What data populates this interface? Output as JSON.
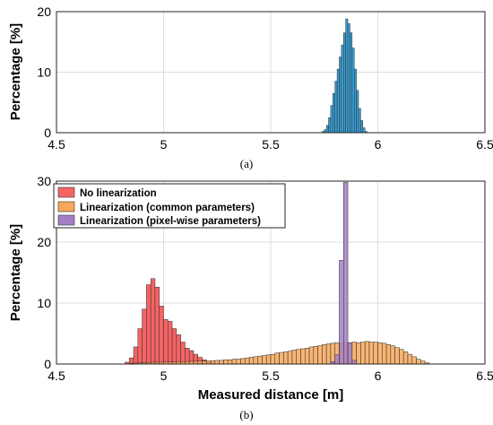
{
  "chart_data": [
    {
      "type": "bar",
      "caption": "(a)",
      "ylabel": "Percentage [%]",
      "xlabel": "",
      "xlim": [
        4.5,
        6.5
      ],
      "ylim": [
        0,
        20
      ],
      "xticks": [
        "4.5",
        "5",
        "5.5",
        "6",
        "6.5"
      ],
      "yticks": [
        "0",
        "10",
        "20"
      ],
      "grid": true,
      "bin_width": 0.01,
      "series": [
        {
          "color": "#3a9fd4",
          "bins": [
            {
              "x": 5.74,
              "y": 0.2
            },
            {
              "x": 5.75,
              "y": 0.5
            },
            {
              "x": 5.76,
              "y": 1.2
            },
            {
              "x": 5.77,
              "y": 2.5
            },
            {
              "x": 5.78,
              "y": 4.5
            },
            {
              "x": 5.79,
              "y": 6.5
            },
            {
              "x": 5.8,
              "y": 8.5
            },
            {
              "x": 5.81,
              "y": 10.5
            },
            {
              "x": 5.82,
              "y": 12.5
            },
            {
              "x": 5.83,
              "y": 14.5
            },
            {
              "x": 5.84,
              "y": 16.5
            },
            {
              "x": 5.85,
              "y": 18.8
            },
            {
              "x": 5.86,
              "y": 18.0
            },
            {
              "x": 5.87,
              "y": 16.5
            },
            {
              "x": 5.88,
              "y": 14.0
            },
            {
              "x": 5.89,
              "y": 10.5
            },
            {
              "x": 5.9,
              "y": 7.0
            },
            {
              "x": 5.91,
              "y": 4.0
            },
            {
              "x": 5.92,
              "y": 2.0
            },
            {
              "x": 5.93,
              "y": 0.8
            },
            {
              "x": 5.94,
              "y": 0.2
            }
          ]
        }
      ]
    },
    {
      "type": "bar",
      "caption": "(b)",
      "ylabel": "Percentage [%]",
      "xlabel": "Measured distance [m]",
      "xlim": [
        4.5,
        6.5
      ],
      "ylim": [
        0,
        30
      ],
      "xticks": [
        "4.5",
        "5",
        "5.5",
        "6",
        "6.5"
      ],
      "yticks": [
        "0",
        "10",
        "20",
        "30"
      ],
      "grid": true,
      "legend_position": "top-left",
      "bin_width": 0.02,
      "series": [
        {
          "name": "No linearization",
          "color": "#f46464",
          "bins": [
            {
              "x": 4.82,
              "y": 0.3
            },
            {
              "x": 4.84,
              "y": 1.0
            },
            {
              "x": 4.86,
              "y": 2.8
            },
            {
              "x": 4.88,
              "y": 5.8
            },
            {
              "x": 4.9,
              "y": 9.0
            },
            {
              "x": 4.92,
              "y": 13.0
            },
            {
              "x": 4.94,
              "y": 14.0
            },
            {
              "x": 4.96,
              "y": 12.6
            },
            {
              "x": 4.98,
              "y": 9.5
            },
            {
              "x": 5.0,
              "y": 7.3
            },
            {
              "x": 5.02,
              "y": 7.0
            },
            {
              "x": 5.04,
              "y": 5.8
            },
            {
              "x": 5.06,
              "y": 4.8
            },
            {
              "x": 5.08,
              "y": 3.6
            },
            {
              "x": 5.1,
              "y": 2.6
            },
            {
              "x": 5.12,
              "y": 2.2
            },
            {
              "x": 5.14,
              "y": 1.6
            },
            {
              "x": 5.16,
              "y": 1.1
            },
            {
              "x": 5.18,
              "y": 0.7
            },
            {
              "x": 5.2,
              "y": 0.4
            },
            {
              "x": 5.22,
              "y": 0.2
            }
          ]
        },
        {
          "name": "Linearization (common parameters)",
          "color": "#f6a85a",
          "bins": [
            {
              "x": 4.84,
              "y": 0.1
            },
            {
              "x": 4.86,
              "y": 0.15
            },
            {
              "x": 4.88,
              "y": 0.2
            },
            {
              "x": 4.9,
              "y": 0.2
            },
            {
              "x": 4.92,
              "y": 0.25
            },
            {
              "x": 4.94,
              "y": 0.3
            },
            {
              "x": 4.96,
              "y": 0.3
            },
            {
              "x": 4.98,
              "y": 0.3
            },
            {
              "x": 5.0,
              "y": 0.35
            },
            {
              "x": 5.02,
              "y": 0.35
            },
            {
              "x": 5.04,
              "y": 0.35
            },
            {
              "x": 5.06,
              "y": 0.4
            },
            {
              "x": 5.08,
              "y": 0.4
            },
            {
              "x": 5.1,
              "y": 0.4
            },
            {
              "x": 5.12,
              "y": 0.45
            },
            {
              "x": 5.14,
              "y": 0.45
            },
            {
              "x": 5.16,
              "y": 0.5
            },
            {
              "x": 5.18,
              "y": 0.5
            },
            {
              "x": 5.2,
              "y": 0.5
            },
            {
              "x": 5.22,
              "y": 0.55
            },
            {
              "x": 5.24,
              "y": 0.6
            },
            {
              "x": 5.26,
              "y": 0.6
            },
            {
              "x": 5.28,
              "y": 0.7
            },
            {
              "x": 5.3,
              "y": 0.7
            },
            {
              "x": 5.32,
              "y": 0.8
            },
            {
              "x": 5.34,
              "y": 0.8
            },
            {
              "x": 5.36,
              "y": 0.9
            },
            {
              "x": 5.38,
              "y": 1.0
            },
            {
              "x": 5.4,
              "y": 1.1
            },
            {
              "x": 5.42,
              "y": 1.2
            },
            {
              "x": 5.44,
              "y": 1.3
            },
            {
              "x": 5.46,
              "y": 1.4
            },
            {
              "x": 5.48,
              "y": 1.5
            },
            {
              "x": 5.5,
              "y": 1.6
            },
            {
              "x": 5.52,
              "y": 1.8
            },
            {
              "x": 5.54,
              "y": 1.9
            },
            {
              "x": 5.56,
              "y": 2.0
            },
            {
              "x": 5.58,
              "y": 2.1
            },
            {
              "x": 5.6,
              "y": 2.3
            },
            {
              "x": 5.62,
              "y": 2.4
            },
            {
              "x": 5.64,
              "y": 2.5
            },
            {
              "x": 5.66,
              "y": 2.6
            },
            {
              "x": 5.68,
              "y": 2.8
            },
            {
              "x": 5.7,
              "y": 2.9
            },
            {
              "x": 5.72,
              "y": 3.0
            },
            {
              "x": 5.74,
              "y": 3.2
            },
            {
              "x": 5.76,
              "y": 3.3
            },
            {
              "x": 5.78,
              "y": 3.4
            },
            {
              "x": 5.8,
              "y": 3.5
            },
            {
              "x": 5.82,
              "y": 3.4
            },
            {
              "x": 5.84,
              "y": 3.6
            },
            {
              "x": 5.86,
              "y": 3.5
            },
            {
              "x": 5.88,
              "y": 3.6
            },
            {
              "x": 5.9,
              "y": 3.5
            },
            {
              "x": 5.92,
              "y": 3.6
            },
            {
              "x": 5.94,
              "y": 3.7
            },
            {
              "x": 5.96,
              "y": 3.6
            },
            {
              "x": 5.98,
              "y": 3.6
            },
            {
              "x": 6.0,
              "y": 3.5
            },
            {
              "x": 6.02,
              "y": 3.4
            },
            {
              "x": 6.04,
              "y": 3.2
            },
            {
              "x": 6.06,
              "y": 3.0
            },
            {
              "x": 6.08,
              "y": 2.7
            },
            {
              "x": 6.1,
              "y": 2.4
            },
            {
              "x": 6.12,
              "y": 2.0
            },
            {
              "x": 6.14,
              "y": 1.6
            },
            {
              "x": 6.16,
              "y": 1.2
            },
            {
              "x": 6.18,
              "y": 0.8
            },
            {
              "x": 6.2,
              "y": 0.5
            },
            {
              "x": 6.22,
              "y": 0.2
            }
          ]
        },
        {
          "name": "Linearization (pixel-wise parameters)",
          "color": "#a57fc6",
          "bins": [
            {
              "x": 5.78,
              "y": 0.4
            },
            {
              "x": 5.8,
              "y": 1.5
            },
            {
              "x": 5.82,
              "y": 17.0
            },
            {
              "x": 5.84,
              "y": 29.8
            },
            {
              "x": 5.86,
              "y": 3.5
            },
            {
              "x": 5.88,
              "y": 0.6
            }
          ]
        }
      ]
    }
  ]
}
